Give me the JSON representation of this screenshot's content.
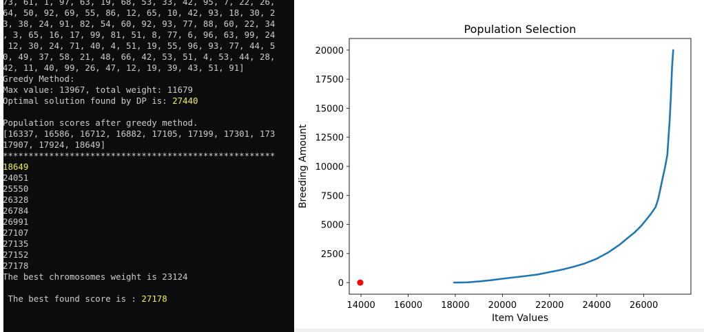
{
  "terminal": {
    "lines": [
      [
        {
          "text": "73, 61, 1, 97, 63, 19, 68, 53, 33, 42, 95, 7, 22, 26,",
          "color": "default"
        }
      ],
      [
        {
          "text": "64, 50, 92, 69, 55, 86, 12, 65, 10, 42, 93, 18, 30, 2",
          "color": "default"
        }
      ],
      [
        {
          "text": "3, 38, 24, 91, 82, 54, 60, 92, 93, 77, 88, 60, 22, 34",
          "color": "default"
        }
      ],
      [
        {
          "text": ", 3, 65, 16, 17, 99, 81, 51, 8, 77, 6, 96, 63, 99, 24",
          "color": "default"
        }
      ],
      [
        {
          "text": " 12, 30, 24, 71, 40, 4, 51, 19, 55, 96, 93, 77, 44, 5",
          "color": "default"
        }
      ],
      [
        {
          "text": "0, 49, 37, 58, 21, 48, 66, 42, 53, 51, 4, 53, 44, 28,",
          "color": "default"
        }
      ],
      [
        {
          "text": "42, 11, 40, 99, 26, 47, 12, 19, 39, 43, 51, 91]",
          "color": "default"
        }
      ],
      [
        {
          "text": "Greedy Method:",
          "color": "default"
        }
      ],
      [
        {
          "text": "Max value: 13967, total weight: 11679",
          "color": "default"
        }
      ],
      [
        {
          "text": "Optimal solution found by DP is: ",
          "color": "default"
        },
        {
          "text": "27440",
          "color": "yellow"
        }
      ],
      [
        {
          "text": "",
          "color": "default"
        }
      ],
      [
        {
          "text": "Population scores after greedy method.",
          "color": "default"
        }
      ],
      [
        {
          "text": "[16337, 16586, 16712, 16882, 17105, 17199, 17301, 173",
          "color": "default"
        }
      ],
      [
        {
          "text": "17907, 17924, 18649]",
          "color": "default"
        }
      ],
      [
        {
          "text": "*****************************************************",
          "color": "default"
        }
      ],
      [
        {
          "text": "18649",
          "color": "yellow"
        }
      ],
      [
        {
          "text": "24051",
          "color": "default"
        }
      ],
      [
        {
          "text": "25550",
          "color": "default"
        }
      ],
      [
        {
          "text": "26328",
          "color": "default"
        }
      ],
      [
        {
          "text": "26784",
          "color": "default"
        }
      ],
      [
        {
          "text": "26991",
          "color": "default"
        }
      ],
      [
        {
          "text": "27107",
          "color": "default"
        }
      ],
      [
        {
          "text": "27135",
          "color": "default"
        }
      ],
      [
        {
          "text": "27152",
          "color": "default"
        }
      ],
      [
        {
          "text": "27178",
          "color": "default"
        }
      ],
      [
        {
          "text": "The best chromosomes weight is 23124",
          "color": "default"
        }
      ],
      [
        {
          "text": "",
          "color": "default"
        }
      ],
      [
        {
          "text": " The best found score is : ",
          "color": "default"
        },
        {
          "text": "27178",
          "color": "yellow"
        }
      ]
    ],
    "colors": {
      "background": "#0c0c0c",
      "default": "#cccccc",
      "yellow": "#f2f24a"
    }
  },
  "chart_data": {
    "type": "line",
    "title": "Population Selection",
    "xlabel": "Item Values",
    "ylabel": "Breeding Amount",
    "xlim": [
      13500,
      28000
    ],
    "ylim": [
      -1000,
      21000
    ],
    "xticks": [
      14000,
      16000,
      18000,
      20000,
      22000,
      24000,
      26000
    ],
    "yticks": [
      0,
      2500,
      5000,
      7500,
      10000,
      12500,
      15000,
      17500,
      20000
    ],
    "grid": false,
    "series": [
      {
        "color": "#1f77b4",
        "x": [
          17950,
          18500,
          19000,
          19500,
          20000,
          20500,
          21000,
          21500,
          22000,
          22500,
          23000,
          23500,
          24000,
          24500,
          25000,
          25300,
          25600,
          25900,
          26100,
          26300,
          26500,
          26600,
          26700,
          26800,
          26900,
          27000,
          27050,
          27100,
          27150,
          27200,
          27250
        ],
        "y": [
          0,
          20,
          100,
          200,
          330,
          450,
          570,
          700,
          900,
          1100,
          1350,
          1650,
          2050,
          2600,
          3300,
          3800,
          4300,
          4900,
          5400,
          5900,
          6500,
          7100,
          8000,
          9000,
          9900,
          11000,
          12500,
          14000,
          16000,
          18500,
          20000
        ]
      }
    ],
    "points": [
      {
        "x": 13967,
        "y": 0,
        "color": "#ff0000"
      }
    ]
  }
}
